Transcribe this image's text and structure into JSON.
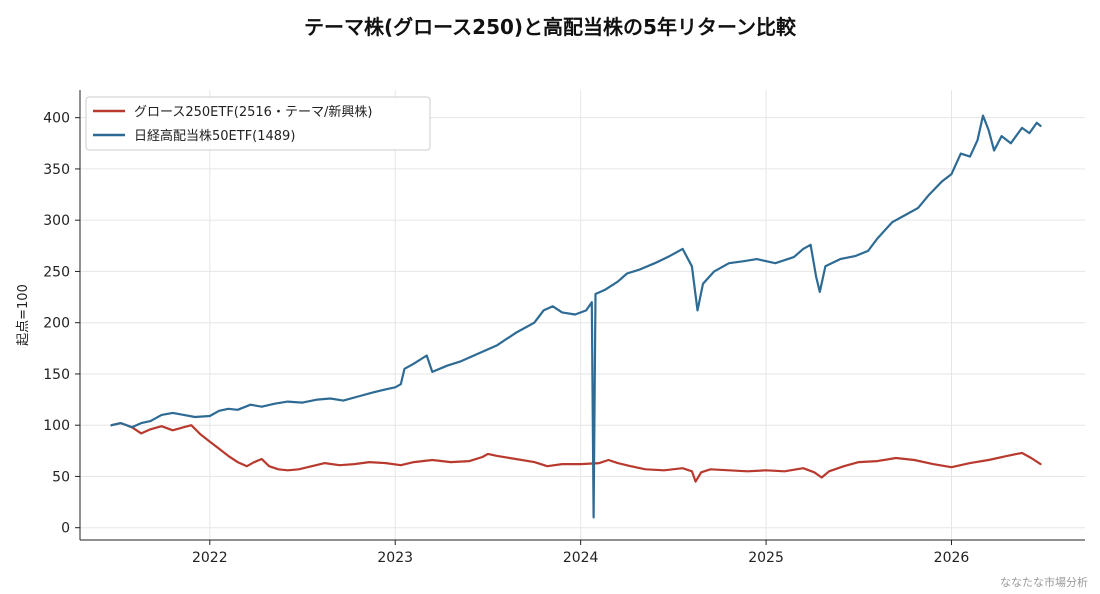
{
  "chart_data": {
    "type": "line",
    "title": "テーマ株(グロース250)と高配当株の5年リターン比較",
    "ylabel": "起点=100",
    "xlabel": "",
    "ylim": [
      -12,
      427
    ],
    "xlim": [
      2021.3,
      2026.72
    ],
    "yticks": [
      0,
      50,
      100,
      150,
      200,
      250,
      300,
      350,
      400
    ],
    "xticks": [
      2022,
      2023,
      2024,
      2025,
      2026
    ],
    "grid": true,
    "legend_position": "top-left",
    "series": [
      {
        "name": "グロース250ETF(2516・テーマ/新興株)",
        "color": "#b83a2e",
        "points": [
          [
            2021.47,
            100
          ],
          [
            2021.52,
            102
          ],
          [
            2021.58,
            98
          ],
          [
            2021.63,
            92
          ],
          [
            2021.68,
            96
          ],
          [
            2021.74,
            99
          ],
          [
            2021.8,
            95
          ],
          [
            2021.86,
            98
          ],
          [
            2021.9,
            100
          ],
          [
            2021.95,
            91
          ],
          [
            2022.0,
            84
          ],
          [
            2022.05,
            77
          ],
          [
            2022.1,
            70
          ],
          [
            2022.15,
            64
          ],
          [
            2022.2,
            60
          ],
          [
            2022.24,
            64
          ],
          [
            2022.28,
            67
          ],
          [
            2022.32,
            60
          ],
          [
            2022.37,
            57
          ],
          [
            2022.42,
            56
          ],
          [
            2022.48,
            57
          ],
          [
            2022.55,
            60
          ],
          [
            2022.62,
            63
          ],
          [
            2022.7,
            61
          ],
          [
            2022.78,
            62
          ],
          [
            2022.86,
            64
          ],
          [
            2022.95,
            63
          ],
          [
            2023.03,
            61
          ],
          [
            2023.1,
            64
          ],
          [
            2023.2,
            66
          ],
          [
            2023.3,
            64
          ],
          [
            2023.4,
            65
          ],
          [
            2023.47,
            69
          ],
          [
            2023.5,
            72
          ],
          [
            2023.55,
            70
          ],
          [
            2023.65,
            67
          ],
          [
            2023.75,
            64
          ],
          [
            2023.82,
            60
          ],
          [
            2023.9,
            62
          ],
          [
            2024.0,
            62
          ],
          [
            2024.1,
            63
          ],
          [
            2024.15,
            66
          ],
          [
            2024.2,
            63
          ],
          [
            2024.27,
            60
          ],
          [
            2024.35,
            57
          ],
          [
            2024.45,
            56
          ],
          [
            2024.55,
            58
          ],
          [
            2024.6,
            55
          ],
          [
            2024.62,
            45
          ],
          [
            2024.65,
            54
          ],
          [
            2024.7,
            57
          ],
          [
            2024.8,
            56
          ],
          [
            2024.9,
            55
          ],
          [
            2025.0,
            56
          ],
          [
            2025.1,
            55
          ],
          [
            2025.2,
            58
          ],
          [
            2025.26,
            54
          ],
          [
            2025.3,
            49
          ],
          [
            2025.34,
            55
          ],
          [
            2025.42,
            60
          ],
          [
            2025.5,
            64
          ],
          [
            2025.6,
            65
          ],
          [
            2025.7,
            68
          ],
          [
            2025.8,
            66
          ],
          [
            2025.9,
            62
          ],
          [
            2026.0,
            59
          ],
          [
            2026.1,
            63
          ],
          [
            2026.2,
            66
          ],
          [
            2026.3,
            70
          ],
          [
            2026.38,
            73
          ],
          [
            2026.43,
            68
          ],
          [
            2026.48,
            62
          ]
        ]
      },
      {
        "name": "日経高配当株50ETF(1489)",
        "color": "#2e6b94",
        "points": [
          [
            2021.47,
            100
          ],
          [
            2021.52,
            102
          ],
          [
            2021.58,
            98
          ],
          [
            2021.63,
            102
          ],
          [
            2021.68,
            104
          ],
          [
            2021.74,
            110
          ],
          [
            2021.8,
            112
          ],
          [
            2021.86,
            110
          ],
          [
            2021.92,
            108
          ],
          [
            2022.0,
            109
          ],
          [
            2022.05,
            114
          ],
          [
            2022.1,
            116
          ],
          [
            2022.15,
            115
          ],
          [
            2022.22,
            120
          ],
          [
            2022.28,
            118
          ],
          [
            2022.35,
            121
          ],
          [
            2022.42,
            123
          ],
          [
            2022.5,
            122
          ],
          [
            2022.58,
            125
          ],
          [
            2022.65,
            126
          ],
          [
            2022.72,
            124
          ],
          [
            2022.8,
            128
          ],
          [
            2022.88,
            132
          ],
          [
            2022.95,
            135
          ],
          [
            2023.0,
            137
          ],
          [
            2023.03,
            140
          ],
          [
            2023.05,
            155
          ],
          [
            2023.1,
            160
          ],
          [
            2023.17,
            168
          ],
          [
            2023.2,
            152
          ],
          [
            2023.28,
            158
          ],
          [
            2023.35,
            162
          ],
          [
            2023.45,
            170
          ],
          [
            2023.55,
            178
          ],
          [
            2023.65,
            190
          ],
          [
            2023.75,
            200
          ],
          [
            2023.8,
            212
          ],
          [
            2023.85,
            216
          ],
          [
            2023.9,
            210
          ],
          [
            2023.97,
            208
          ],
          [
            2024.03,
            212
          ],
          [
            2024.06,
            220
          ],
          [
            2024.07,
            10
          ],
          [
            2024.08,
            228
          ],
          [
            2024.13,
            232
          ],
          [
            2024.2,
            240
          ],
          [
            2024.25,
            248
          ],
          [
            2024.32,
            252
          ],
          [
            2024.4,
            258
          ],
          [
            2024.48,
            265
          ],
          [
            2024.55,
            272
          ],
          [
            2024.6,
            255
          ],
          [
            2024.63,
            212
          ],
          [
            2024.66,
            238
          ],
          [
            2024.72,
            250
          ],
          [
            2024.8,
            258
          ],
          [
            2024.88,
            260
          ],
          [
            2024.95,
            262
          ],
          [
            2025.05,
            258
          ],
          [
            2025.15,
            264
          ],
          [
            2025.2,
            272
          ],
          [
            2025.24,
            276
          ],
          [
            2025.27,
            245
          ],
          [
            2025.29,
            230
          ],
          [
            2025.32,
            255
          ],
          [
            2025.4,
            262
          ],
          [
            2025.48,
            265
          ],
          [
            2025.55,
            270
          ],
          [
            2025.6,
            282
          ],
          [
            2025.68,
            298
          ],
          [
            2025.75,
            305
          ],
          [
            2025.82,
            312
          ],
          [
            2025.88,
            325
          ],
          [
            2025.95,
            338
          ],
          [
            2026.0,
            345
          ],
          [
            2026.05,
            365
          ],
          [
            2026.1,
            362
          ],
          [
            2026.14,
            378
          ],
          [
            2026.17,
            402
          ],
          [
            2026.2,
            388
          ],
          [
            2026.23,
            368
          ],
          [
            2026.27,
            382
          ],
          [
            2026.32,
            375
          ],
          [
            2026.38,
            390
          ],
          [
            2026.42,
            385
          ],
          [
            2026.46,
            395
          ],
          [
            2026.48,
            392
          ]
        ]
      }
    ]
  },
  "watermark": "ななたな市場分析"
}
